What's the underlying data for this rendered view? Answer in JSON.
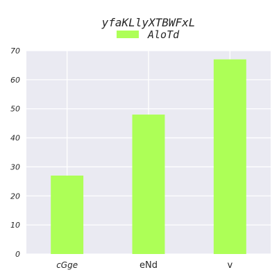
{
  "chart_data": {
    "type": "bar",
    "title": "yfaKLlyXTBWFxL",
    "xlabel": "",
    "ylabel": "",
    "categories": [
      "cGge",
      "eNd",
      "v"
    ],
    "series": [
      {
        "name": "AloTd",
        "values": [
          27,
          48,
          67
        ],
        "color": "#adff57"
      }
    ],
    "ylim": [
      0,
      70
    ],
    "yticks": [
      0,
      10,
      20,
      30,
      40,
      50,
      60,
      70
    ],
    "grid": true,
    "legend_position": "top-center",
    "background_color": "#eaeaf2",
    "grid_color": "#ffffff"
  }
}
